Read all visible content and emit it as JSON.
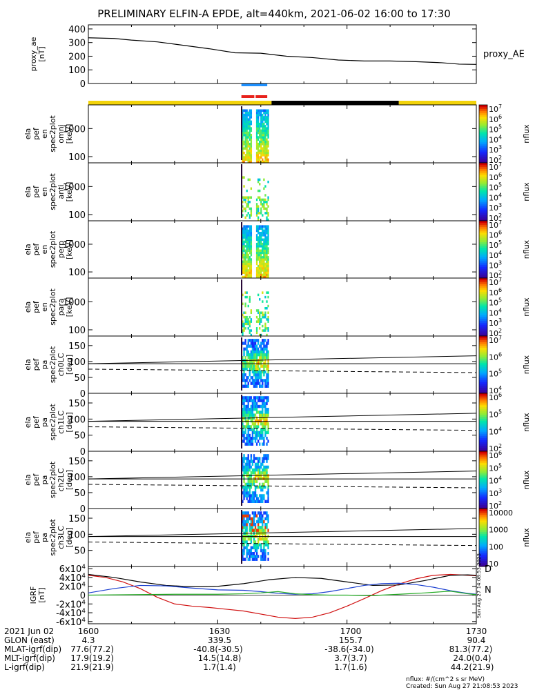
{
  "colors": {
    "axis": "#000000",
    "ae_line": "#000000",
    "bar_blue": "#1e90ff",
    "bar_red": "#e8221c",
    "bar_yellow": "#f2d30a",
    "bar_black": "#000000",
    "grf_x": "#d01010",
    "grf_y": "#000000",
    "grf_z": "#1a3fd0",
    "grf_w": "#22aa22"
  },
  "chart_data": {
    "type": "heatmap",
    "title": "PRELIMINARY ELFIN-A EPDE, alt=440km, 2021-06-02 16:00 to 17:30",
    "time_axis": {
      "range": [
        "16:00",
        "17:30"
      ],
      "tick_labels": [
        "1600",
        "1630",
        "1700",
        "1730"
      ]
    },
    "bars": {
      "sci_zones_blue": [
        {
          "start_min": 35.5,
          "end_min": 41.5
        }
      ],
      "sci_zones_red": [
        {
          "start_min": 35.5,
          "end_min": 38.5
        },
        {
          "start_min": 38.8,
          "end_min": 41.5
        }
      ],
      "orbit_yellow": [
        {
          "start_min": 0,
          "end_min": 42.5
        },
        {
          "start_min": 72,
          "end_min": 90
        }
      ],
      "orbit_black": [
        {
          "start_min": 42.5,
          "end_min": 72
        }
      ]
    },
    "panels": [
      {
        "id": "ae",
        "type": "line",
        "ylabel_lines": [
          "proxy_ae",
          "[nT]"
        ],
        "ytick_labels": [
          "0",
          "100",
          "200",
          "300",
          "400"
        ],
        "ylim": [
          0,
          430
        ],
        "legend": "proxy_AE",
        "series": [
          {
            "x": [
              0,
              6,
              10,
              16,
              22,
              28,
              34,
              40,
              46,
              52,
              58,
              64,
              70,
              76,
              82,
              86,
              90
            ],
            "values": [
              335,
              330,
              318,
              305,
              280,
              255,
              225,
              222,
              200,
              190,
              172,
              165,
              165,
              160,
              152,
              142,
              140
            ]
          }
        ]
      },
      {
        "id": "en-omni",
        "type": "spectrogram",
        "ylabel_lines": [
          "ela",
          "pef",
          "en",
          "spec2plot",
          "omni",
          "[keV]"
        ],
        "ytick_labels": [
          "100",
          "1000"
        ],
        "yrange": [
          60,
          7000
        ],
        "colorbar": {
          "label": "nflux",
          "ticks": [
            "10^2",
            "10^3",
            "10^4",
            "10^5",
            "10^6",
            "10^7"
          ]
        }
      },
      {
        "id": "en-anti",
        "type": "spectrogram",
        "ylabel_lines": [
          "ela",
          "pef",
          "en",
          "spec2plot",
          "anti",
          "[keV]"
        ],
        "ytick_labels": [
          "100",
          "1000"
        ],
        "yrange": [
          60,
          7000
        ],
        "colorbar": {
          "label": "nflux",
          "ticks": [
            "10^2",
            "10^3",
            "10^4",
            "10^5",
            "10^6",
            "10^7"
          ]
        }
      },
      {
        "id": "en-perp",
        "type": "spectrogram",
        "ylabel_lines": [
          "ela",
          "pef",
          "en",
          "spec2plot",
          "perp",
          "[keV]"
        ],
        "ytick_labels": [
          "100",
          "1000"
        ],
        "yrange": [
          60,
          7000
        ],
        "colorbar": {
          "label": "nflux",
          "ticks": [
            "10^2",
            "10^3",
            "10^4",
            "10^5",
            "10^6",
            "10^7"
          ]
        }
      },
      {
        "id": "en-para",
        "type": "spectrogram",
        "ylabel_lines": [
          "ela",
          "pef",
          "en",
          "spec2plot",
          "para",
          "[keV]"
        ],
        "ytick_labels": [
          "100",
          "1000"
        ],
        "yrange": [
          60,
          7000
        ],
        "colorbar": {
          "label": "nflux",
          "ticks": [
            "10^2",
            "10^3",
            "10^4",
            "10^5",
            "10^6",
            "10^7"
          ]
        }
      },
      {
        "id": "pa-ch0",
        "type": "spectrogram",
        "ylabel_lines": [
          "ela",
          "pef",
          "pa",
          "spec2plot",
          "ch0LC",
          "[deg]"
        ],
        "ytick_labels": [
          "0",
          "50",
          "100",
          "150"
        ],
        "ylim": [
          0,
          180
        ],
        "colorbar": {
          "label": "nflux",
          "ticks": [
            "10^4",
            "10^5",
            "10^6",
            "10^7"
          ]
        },
        "lines": {
          "solid_lower": [
            [
              0,
              93
            ],
            [
              90,
              93
            ]
          ],
          "solid_upper": [
            [
              0,
              93
            ],
            [
              90,
              118
            ]
          ],
          "dashed": [
            [
              0,
              76
            ],
            [
              90,
              65
            ]
          ]
        }
      },
      {
        "id": "pa-ch1",
        "type": "spectrogram",
        "ylabel_lines": [
          "ela",
          "pef",
          "pa",
          "spec2plot",
          "ch1LC",
          "[deg]"
        ],
        "ytick_labels": [
          "0",
          "50",
          "100",
          "150"
        ],
        "ylim": [
          0,
          180
        ],
        "colorbar": {
          "label": "nflux",
          "ticks": [
            "10^2",
            "10^4",
            "10^5",
            "10^6"
          ]
        },
        "lines": {
          "solid_lower": [
            [
              0,
              93
            ],
            [
              90,
              93
            ]
          ],
          "solid_upper": [
            [
              0,
              93
            ],
            [
              90,
              118
            ]
          ],
          "dashed": [
            [
              0,
              76
            ],
            [
              90,
              65
            ]
          ]
        }
      },
      {
        "id": "pa-ch2",
        "type": "spectrogram",
        "ylabel_lines": [
          "ela",
          "pef",
          "pa",
          "spec2plot",
          "ch2LC",
          "[deg]"
        ],
        "ytick_labels": [
          "0",
          "50",
          "100",
          "150"
        ],
        "ylim": [
          0,
          180
        ],
        "colorbar": {
          "label": "nflux",
          "ticks": [
            "10^2",
            "10^3",
            "10^4",
            "10^5",
            "10^6"
          ]
        },
        "lines": {
          "solid_lower": [
            [
              0,
              93
            ],
            [
              90,
              93
            ]
          ],
          "solid_upper": [
            [
              0,
              93
            ],
            [
              90,
              118
            ]
          ],
          "dashed": [
            [
              0,
              76
            ],
            [
              90,
              65
            ]
          ]
        }
      },
      {
        "id": "pa-ch3",
        "type": "spectrogram",
        "ylabel_lines": [
          "ela",
          "pef",
          "pa",
          "spec2plot",
          "ch3LC",
          "[deg]"
        ],
        "ytick_labels": [
          "50",
          "100",
          "150"
        ],
        "ylim": [
          0,
          180
        ],
        "colorbar": {
          "label": "nflux",
          "ticks": [
            "10",
            "100",
            "1000",
            "10000"
          ]
        },
        "lines": {
          "solid_lower": [
            [
              0,
              93
            ],
            [
              90,
              93
            ]
          ],
          "solid_upper": [
            [
              0,
              93
            ],
            [
              90,
              118
            ]
          ],
          "dashed": [
            [
              0,
              76
            ],
            [
              90,
              65
            ]
          ]
        }
      },
      {
        "id": "grf",
        "type": "line",
        "ylabel_lines": [
          "IGRF",
          "[nT]"
        ],
        "ytick_labels": [
          "-6x10^4",
          "-4x10^4",
          "-2x10^4",
          "0",
          "2x10^4",
          "4x10^4",
          "6x10^4"
        ],
        "ylim": [
          -65000,
          65000
        ],
        "right_labels": [
          "D",
          "N"
        ],
        "right_labels_colors": [
          "#d01010",
          "#22aa22"
        ],
        "series": [
          {
            "color": "#d01010",
            "x": [
              0,
              4,
              8,
              12,
              16,
              20,
              24,
              28,
              32,
              36,
              40,
              44,
              48,
              52,
              56,
              60,
              64,
              68,
              72,
              76,
              80,
              84,
              88,
              90
            ],
            "values": [
              45000,
              40000,
              30000,
              15000,
              -5000,
              -20000,
              -25000,
              -28000,
              -32000,
              -36000,
              -43000,
              -50000,
              -53000,
              -50000,
              -40000,
              -25000,
              -8000,
              10000,
              25000,
              37000,
              45000,
              47000,
              45000,
              44000
            ]
          },
          {
            "color": "#000000",
            "x": [
              0,
              6,
              12,
              18,
              22,
              26,
              30,
              36,
              42,
              48,
              54,
              60,
              66,
              72,
              78,
              84,
              88,
              90
            ],
            "values": [
              47000,
              40000,
              30000,
              22000,
              20000,
              19000,
              20000,
              26000,
              35000,
              40000,
              38000,
              30000,
              22000,
              23000,
              33000,
              45000,
              46000,
              45000
            ]
          },
          {
            "color": "#1a3fd0",
            "x": [
              0,
              6,
              12,
              18,
              24,
              30,
              36,
              40,
              44,
              48,
              52,
              56,
              60,
              64,
              68,
              72,
              76,
              80,
              84,
              88,
              90
            ],
            "values": [
              5000,
              15000,
              22000,
              21000,
              16000,
              12000,
              11000,
              8000,
              4000,
              2000,
              3000,
              8000,
              15000,
              22000,
              26000,
              27000,
              24000,
              18000,
              10000,
              4000,
              2000
            ]
          },
          {
            "color": "#22aa22",
            "x": [
              0,
              10,
              20,
              30,
              36,
              40,
              44,
              48,
              52,
              56,
              60,
              66,
              72,
              78,
              84,
              88,
              90
            ],
            "values": [
              0,
              1000,
              2000,
              2000,
              3000,
              5000,
              8000,
              3000,
              1000,
              0,
              0,
              -1000,
              2000,
              5000,
              9000,
              3000,
              1000
            ]
          }
        ]
      }
    ]
  },
  "footer": {
    "rows": [
      {
        "label": "2021 Jun 02",
        "values": [
          "1600",
          "1630",
          "1700",
          "1730"
        ]
      },
      {
        "label": "GLON (east)",
        "values": [
          "4.3",
          "339.5",
          "155.7",
          "90.4"
        ]
      },
      {
        "label": "MLAT-igrf(dip)",
        "values": [
          "77.6(77.2)",
          "-40.8(-30.5)",
          "-38.6(-34.0)",
          "81.3(77.2)"
        ]
      },
      {
        "label": "MLT-igrf(dip)",
        "values": [
          "17.9(19.2)",
          "14.5(14.8)",
          "3.7(3.7)",
          "24.0(0.4)"
        ]
      },
      {
        "label": "L-igrf(dip)",
        "values": [
          "21.9(21.9)",
          "1.7(1.4)",
          "1.7(1.6)",
          "44.2(21.9)"
        ]
      }
    ],
    "note_units": "nflux: #/(cm^2 s sr MeV)",
    "note_created": "Created: Sun Aug 27 21:08:53 2023",
    "side_stamp": "Sun Aug 27 14:08:53 2023"
  }
}
